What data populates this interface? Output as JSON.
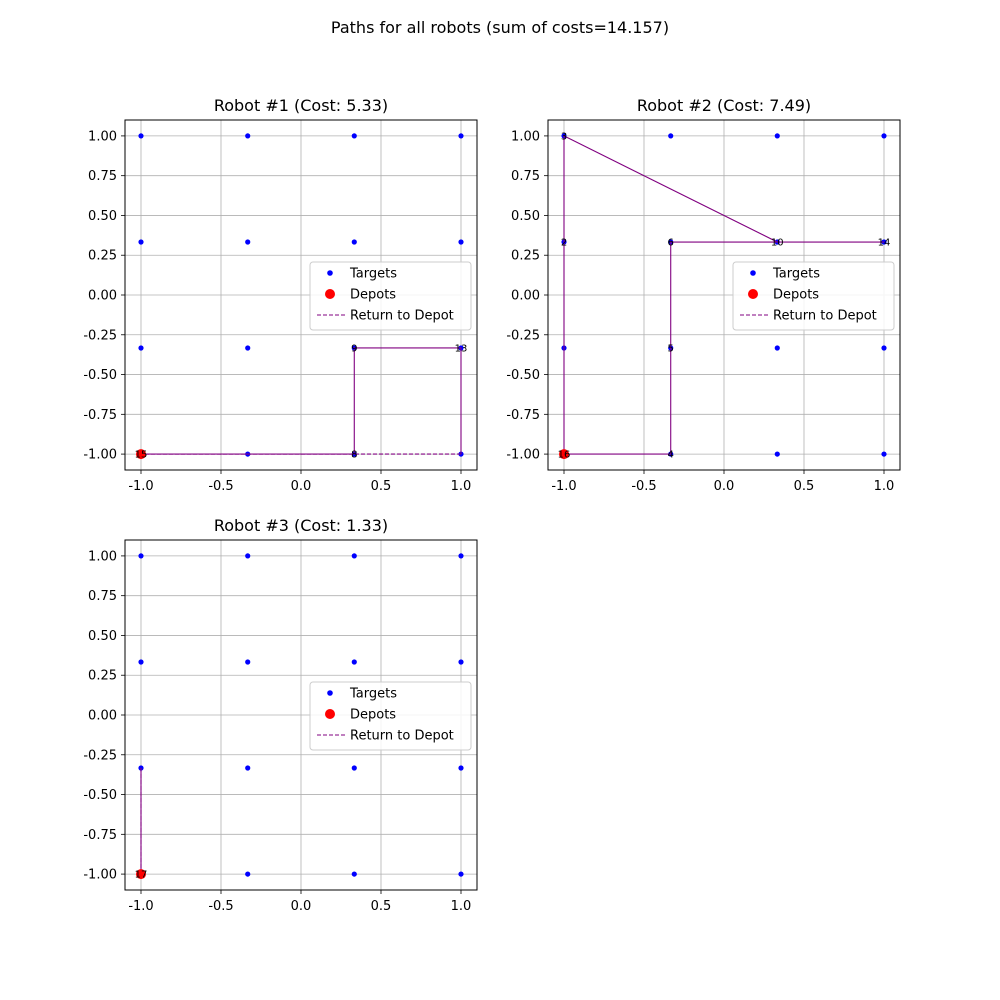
{
  "figure": {
    "title": "Paths for all robots (sum of costs=14.157)"
  },
  "colors": {
    "targets": "#0000ff",
    "depots": "#ff0000",
    "path": "#800080",
    "return": "#800080",
    "grid": "#b0b0b0"
  },
  "legend": {
    "targets": "Targets",
    "depots": "Depots",
    "return": "Return to Depot"
  },
  "chart_data": [
    {
      "type": "scatter",
      "title": "Robot #1 (Cost: 5.33)",
      "xlim": [
        -1.1,
        1.1
      ],
      "ylim": [
        -1.1,
        1.1
      ],
      "xticks": [
        "-1.0",
        "-0.5",
        "0.0",
        "0.5",
        "1.0"
      ],
      "yticks": [
        "1.00",
        "0.75",
        "0.50",
        "0.25",
        "0.00",
        "-0.25",
        "-0.50",
        "-0.75",
        "-1.00"
      ],
      "grid": true,
      "legend_position": "center-right",
      "depots": [
        [
          -1.0,
          -1.0
        ]
      ],
      "path": [
        [
          -1.0,
          -1.0
        ],
        [
          0.333,
          -1.0
        ],
        [
          0.333,
          -0.333
        ],
        [
          1.0,
          -0.333
        ],
        [
          1.0,
          -1.0
        ]
      ],
      "return_path": [
        [
          1.0,
          -1.0
        ],
        [
          -1.0,
          -1.0
        ]
      ],
      "labels": [
        {
          "x": -1.0,
          "y": -1.0,
          "text": "15"
        },
        {
          "x": 0.333,
          "y": -1.0,
          "text": "8"
        },
        {
          "x": 0.333,
          "y": -0.333,
          "text": "9"
        },
        {
          "x": 1.0,
          "y": -0.333,
          "text": "13"
        }
      ]
    },
    {
      "type": "scatter",
      "title": "Robot #2 (Cost: 7.49)",
      "xlim": [
        -1.1,
        1.1
      ],
      "ylim": [
        -1.1,
        1.1
      ],
      "xticks": [
        "-1.0",
        "-0.5",
        "0.0",
        "0.5",
        "1.0"
      ],
      "yticks": [
        "1.00",
        "0.75",
        "0.50",
        "0.25",
        "0.00",
        "-0.25",
        "-0.50",
        "-0.75",
        "-1.00"
      ],
      "grid": true,
      "legend_position": "center-right",
      "depots": [
        [
          -1.0,
          -1.0
        ]
      ],
      "path": [
        [
          -1.0,
          -1.0
        ],
        [
          -1.0,
          0.333
        ],
        [
          -1.0,
          1.0
        ],
        [
          0.333,
          0.333
        ],
        [
          1.0,
          0.333
        ],
        [
          -0.333,
          0.333
        ],
        [
          -0.333,
          -0.333
        ],
        [
          -0.333,
          -1.0
        ],
        [
          -1.0,
          -1.0
        ]
      ],
      "return_path": [],
      "labels": [
        {
          "x": -1.0,
          "y": -1.0,
          "text": "16"
        },
        {
          "x": -1.0,
          "y": 0.333,
          "text": "2"
        },
        {
          "x": -1.0,
          "y": 1.0,
          "text": "3"
        },
        {
          "x": 0.333,
          "y": 0.333,
          "text": "10"
        },
        {
          "x": 1.0,
          "y": 0.333,
          "text": "14"
        },
        {
          "x": -0.333,
          "y": 0.333,
          "text": "6"
        },
        {
          "x": -0.333,
          "y": -0.333,
          "text": "5"
        },
        {
          "x": -0.333,
          "y": -1.0,
          "text": "4"
        }
      ]
    },
    {
      "type": "scatter",
      "title": "Robot #3 (Cost: 1.33)",
      "xlim": [
        -1.1,
        1.1
      ],
      "ylim": [
        -1.1,
        1.1
      ],
      "xticks": [
        "-1.0",
        "-0.5",
        "0.0",
        "0.5",
        "1.0"
      ],
      "yticks": [
        "1.00",
        "0.75",
        "0.50",
        "0.25",
        "0.00",
        "-0.25",
        "-0.50",
        "-0.75",
        "-1.00"
      ],
      "grid": true,
      "legend_position": "center-right",
      "depots": [
        [
          -1.0,
          -1.0
        ]
      ],
      "path": [
        [
          -1.0,
          -1.0
        ],
        [
          -1.0,
          -0.333
        ]
      ],
      "return_path": [
        [
          -1.0,
          -0.333
        ],
        [
          -1.0,
          -1.0
        ]
      ],
      "labels": [
        {
          "x": -1.0,
          "y": -1.0,
          "text": "17"
        }
      ]
    }
  ],
  "targets": [
    [
      -1.0,
      1.0
    ],
    [
      -0.333,
      1.0
    ],
    [
      0.333,
      1.0
    ],
    [
      1.0,
      1.0
    ],
    [
      -1.0,
      0.333
    ],
    [
      -0.333,
      0.333
    ],
    [
      0.333,
      0.333
    ],
    [
      1.0,
      0.333
    ],
    [
      -1.0,
      -0.333
    ],
    [
      -0.333,
      -0.333
    ],
    [
      0.333,
      -0.333
    ],
    [
      1.0,
      -0.333
    ],
    [
      -1.0,
      -1.0
    ],
    [
      -0.333,
      -1.0
    ],
    [
      0.333,
      -1.0
    ],
    [
      1.0,
      -1.0
    ]
  ]
}
